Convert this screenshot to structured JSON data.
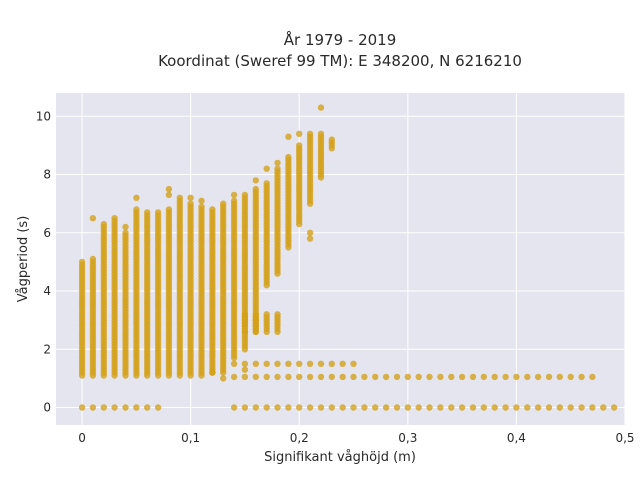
{
  "chart_data": {
    "type": "scatter",
    "title_line1": "År 1979 - 2019",
    "title_line2": "Koordinat (Sweref 99 TM): E 348200, N 6216210",
    "xlabel": "Signifikant våghöjd (m)",
    "ylabel": "Vågperiod (s)",
    "xlim": [
      -0.024,
      0.5
    ],
    "ylim": [
      -0.6,
      10.8
    ],
    "x_ticks": [
      0,
      0.1,
      0.2,
      0.3,
      0.4,
      0.5
    ],
    "x_tick_labels": [
      "0",
      "0,1",
      "0,2",
      "0,3",
      "0,4",
      "0,5"
    ],
    "y_ticks": [
      0,
      2,
      4,
      6,
      8,
      10
    ],
    "y_tick_labels": [
      "0",
      "2",
      "4",
      "6",
      "8",
      "10"
    ],
    "grid": true,
    "marker_color": "#d4a017",
    "plot_bg": "#e5e5ef",
    "x_step": 0.01,
    "main_columns": [
      {
        "x": 0.0,
        "y_min": 1.1,
        "y_max": 5.0
      },
      {
        "x": 0.01,
        "y_min": 1.1,
        "y_max": 5.1
      },
      {
        "x": 0.02,
        "y_min": 1.1,
        "y_max": 6.2
      },
      {
        "x": 0.03,
        "y_min": 1.1,
        "y_max": 6.5
      },
      {
        "x": 0.04,
        "y_min": 1.1,
        "y_max": 6.0
      },
      {
        "x": 0.05,
        "y_min": 1.1,
        "y_max": 6.8
      },
      {
        "x": 0.06,
        "y_min": 1.1,
        "y_max": 6.7
      },
      {
        "x": 0.07,
        "y_min": 1.1,
        "y_max": 6.7
      },
      {
        "x": 0.08,
        "y_min": 1.1,
        "y_max": 6.8
      },
      {
        "x": 0.09,
        "y_min": 1.1,
        "y_max": 7.1
      },
      {
        "x": 0.1,
        "y_min": 1.1,
        "y_max": 7.0
      },
      {
        "x": 0.11,
        "y_min": 1.1,
        "y_max": 6.9
      },
      {
        "x": 0.12,
        "y_min": 1.2,
        "y_max": 6.8
      },
      {
        "x": 0.13,
        "y_min": 1.2,
        "y_max": 7.0
      },
      {
        "x": 0.14,
        "y_min": 1.7,
        "y_max": 7.1
      },
      {
        "x": 0.15,
        "y_min": 2.0,
        "y_max": 7.3
      },
      {
        "x": 0.16,
        "y_min": 2.6,
        "y_max": 7.5
      },
      {
        "x": 0.17,
        "y_min": 4.2,
        "y_max": 7.7
      },
      {
        "x": 0.18,
        "y_min": 4.6,
        "y_max": 8.2
      },
      {
        "x": 0.19,
        "y_min": 5.5,
        "y_max": 8.6
      },
      {
        "x": 0.2,
        "y_min": 6.3,
        "y_max": 9.0
      },
      {
        "x": 0.21,
        "y_min": 7.0,
        "y_max": 9.4
      },
      {
        "x": 0.22,
        "y_min": 7.9,
        "y_max": 9.4
      },
      {
        "x": 0.23,
        "y_min": 8.9,
        "y_max": 9.2
      }
    ],
    "extra_points": [
      [
        0.01,
        6.5
      ],
      [
        0.02,
        6.3
      ],
      [
        0.04,
        6.2
      ],
      [
        0.05,
        7.2
      ],
      [
        0.08,
        7.5
      ],
      [
        0.08,
        7.3
      ],
      [
        0.09,
        7.2
      ],
      [
        0.1,
        7.2
      ],
      [
        0.11,
        7.1
      ],
      [
        0.14,
        7.3
      ],
      [
        0.16,
        7.8
      ],
      [
        0.17,
        8.2
      ],
      [
        0.18,
        8.4
      ],
      [
        0.19,
        9.3
      ],
      [
        0.2,
        9.4
      ],
      [
        0.22,
        10.3
      ],
      [
        0.21,
        6.0
      ],
      [
        0.21,
        5.8
      ],
      [
        0.13,
        1.0
      ],
      [
        0.12,
        1.2
      ],
      [
        0.15,
        1.3
      ],
      [
        0.16,
        2.8
      ],
      [
        0.16,
        3.0
      ]
    ],
    "low_cluster_x": [
      0.15,
      0.16,
      0.17,
      0.18
    ],
    "low_cluster_y_min": 2.6,
    "low_cluster_y_max": 3.2,
    "band_low": {
      "x_min": 0.14,
      "x_max": 0.47,
      "y": 1.05
    },
    "band_low2": {
      "x_min": 0.14,
      "x_max": 0.25,
      "y": 1.5
    },
    "zero_band_left": {
      "x_min": 0.0,
      "x_max": 0.07,
      "y": 0.0
    },
    "zero_band_right": {
      "x_min": 0.14,
      "x_max": 0.49,
      "y": 0.0
    }
  }
}
